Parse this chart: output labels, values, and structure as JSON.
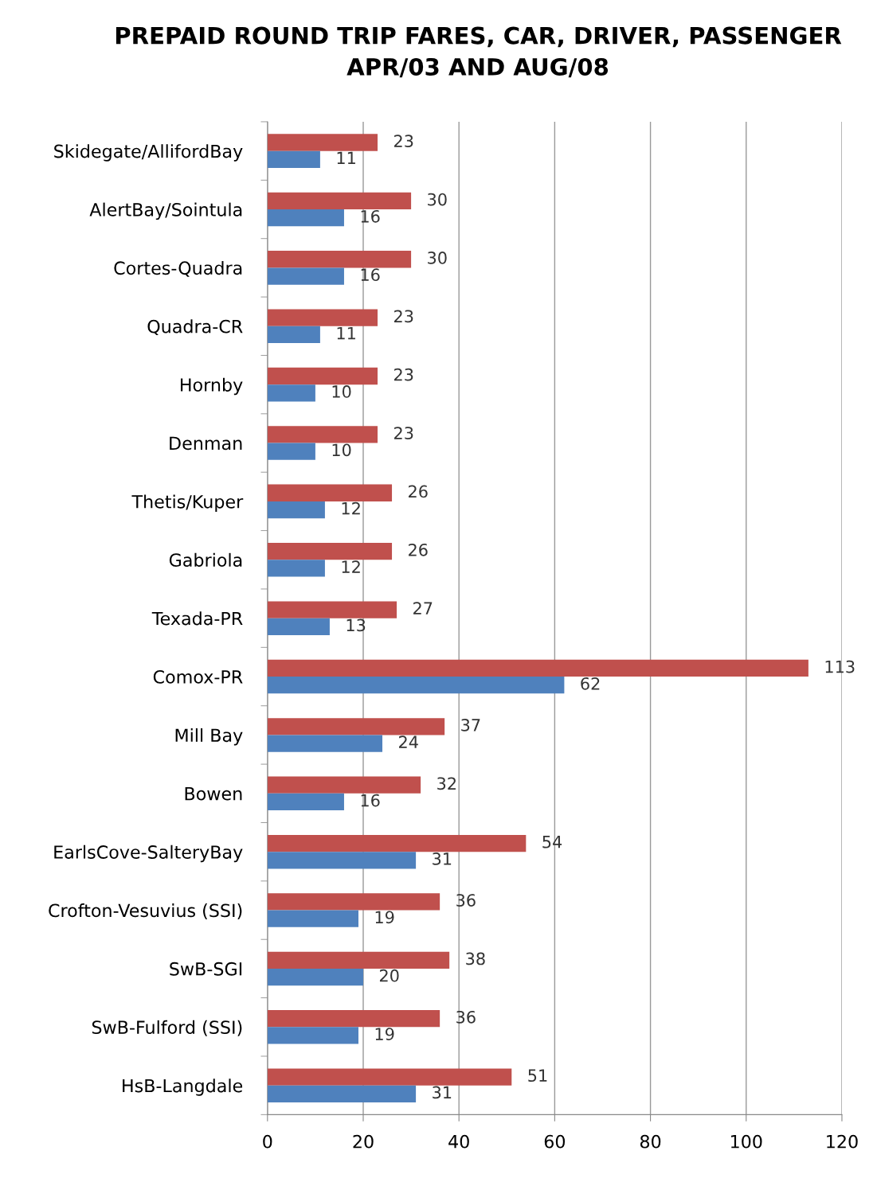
{
  "chart_data": {
    "type": "bar",
    "orientation": "horizontal",
    "title": "PREPAID ROUND TRIP FARES, CAR, DRIVER, PASSENGER\nAPR/03 AND AUG/08",
    "categories": [
      "Skidegate/AllifordBay",
      "AlertBay/Sointula",
      "Cortes-Quadra",
      "Quadra-CR",
      "Hornby",
      "Denman",
      "Thetis/Kuper",
      "Gabriola",
      "Texada-PR",
      "Comox-PR",
      "Mill Bay",
      "Bowen",
      "EarlsCove-SalteryBay",
      "Crofton-Vesuvius (SSI)",
      "SwB-SGI",
      "SwB-Fulford (SSI)",
      "HsB-Langdale"
    ],
    "series": [
      {
        "color": "#c0504d",
        "values": [
          23,
          30,
          30,
          23,
          23,
          23,
          26,
          26,
          27,
          113,
          37,
          32,
          54,
          36,
          38,
          36,
          51
        ]
      },
      {
        "color": "#4f81bd",
        "values": [
          11,
          16,
          16,
          11,
          10,
          10,
          12,
          12,
          13,
          62,
          24,
          16,
          31,
          19,
          20,
          19,
          31
        ]
      }
    ],
    "xlim": [
      0,
      120
    ],
    "xticks": [
      0,
      20,
      40,
      60,
      80,
      100,
      120
    ],
    "grid": "x",
    "data_labels": true
  }
}
